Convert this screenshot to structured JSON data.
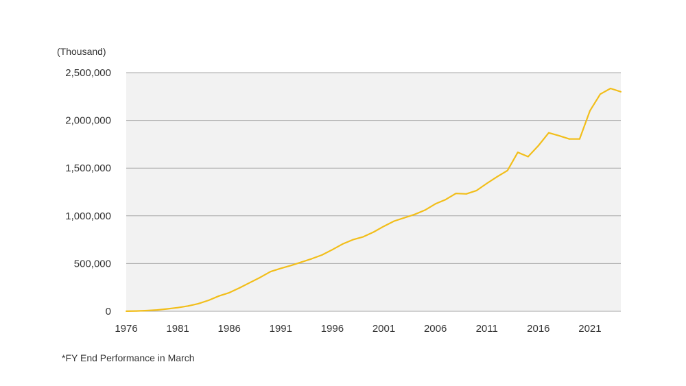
{
  "chart_data": {
    "type": "line",
    "title": "",
    "xlabel": "",
    "ylabel": "",
    "unit_label": "(Thousand)",
    "footnote": "*FY End Performance in March",
    "ylim": [
      0,
      2500000
    ],
    "xlim": [
      1976,
      2024
    ],
    "yticks": [
      0,
      500000,
      1000000,
      1500000,
      2000000,
      2500000
    ],
    "ytick_labels": [
      "0",
      "500,000",
      "1,000,000",
      "1,500,000",
      "2,000,000",
      "2,500,000"
    ],
    "xticks": [
      1976,
      1981,
      1986,
      1991,
      1996,
      2001,
      2006,
      2011,
      2016,
      2021
    ],
    "xtick_labels": [
      "1976",
      "1981",
      "1986",
      "1991",
      "1996",
      "2001",
      "2006",
      "2011",
      "2016",
      "2021"
    ],
    "grid": true,
    "colors": {
      "line": "#F2BE1A",
      "plot_background": "#F2F2F2",
      "gridline": "#A6A6A6"
    },
    "series": [
      {
        "x": [
          1976,
          1977,
          1978,
          1979,
          1980,
          1981,
          1982,
          1983,
          1984,
          1985,
          1986,
          1987,
          1988,
          1989,
          1990,
          1991,
          1992,
          1993,
          1994,
          1995,
          1996,
          1997,
          1998,
          1999,
          2000,
          2001,
          2002,
          2003,
          2004,
          2005,
          2006,
          2007,
          2008,
          2009,
          2010,
          2011,
          2012,
          2013,
          2014,
          2015,
          2016,
          2017,
          2018,
          2019,
          2020,
          2021,
          2022,
          2023,
          2024
        ],
        "values": [
          1000,
          3000,
          7000,
          14000,
          25000,
          38000,
          55000,
          80000,
          115000,
          160000,
          195000,
          245000,
          300000,
          355000,
          415000,
          450000,
          480000,
          515000,
          550000,
          590000,
          645000,
          705000,
          750000,
          780000,
          830000,
          890000,
          945000,
          980000,
          1015000,
          1060000,
          1125000,
          1170000,
          1235000,
          1230000,
          1265000,
          1340000,
          1410000,
          1475000,
          1665000,
          1620000,
          1735000,
          1870000,
          1840000,
          1805000,
          1805000,
          2100000,
          2275000,
          2335000,
          2300000
        ]
      }
    ]
  }
}
